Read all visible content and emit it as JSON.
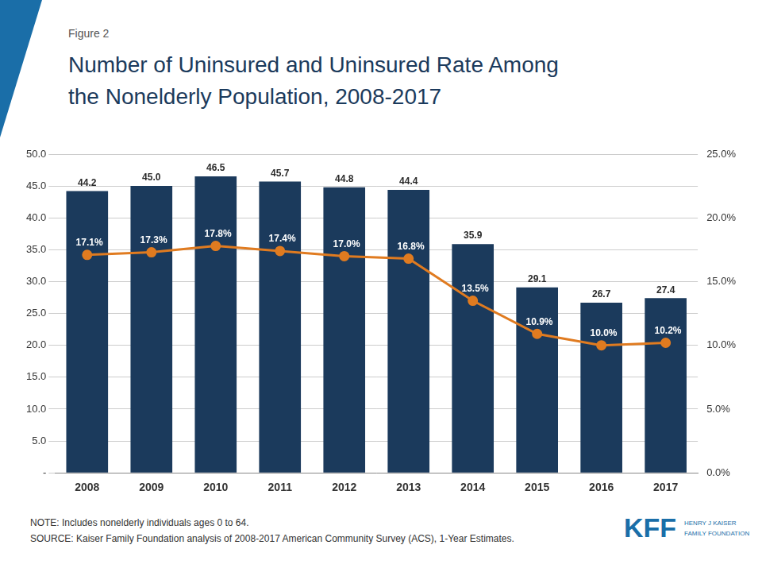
{
  "chart_data": {
    "type": "bar",
    "subtitle": "Figure 2",
    "title": [
      "Number of Uninsured and Uninsured Rate Among",
      "the Nonelderly Population, 2008-2017"
    ],
    "annotations": [
      "NOTE: Includes nonelderly individuals  ages 0 to 64.",
      "SOURCE: Kaiser Family Foundation analysis of 2008-2017 American Community Survey (ACS), 1-Year Estimates.",
      "KFF",
      "HENRY J KAISER\nFAMILY FOUNDATION"
    ],
    "categories": [
      "2008",
      "2009",
      "2010",
      "2011",
      "2012",
      "2013",
      "2014",
      "2015",
      "2016",
      "2017"
    ],
    "series": [
      {
        "type": "bar",
        "color": "#1b3a5c",
        "values": [
          44.2,
          45.0,
          46.5,
          45.7,
          44.8,
          44.4,
          35.9,
          29.1,
          26.7,
          27.4
        ],
        "value_labels": [
          "44.2",
          "45.0",
          "46.5",
          "45.7",
          "44.8",
          "44.4",
          "35.9",
          "29.1",
          "26.7",
          "27.4"
        ],
        "data_labels": true
      },
      {
        "type": "line",
        "axis": "y2",
        "color": "#e07b20",
        "marker": "circle",
        "values": [
          17.1,
          17.3,
          17.8,
          17.4,
          17.0,
          16.8,
          13.5,
          10.9,
          10.0,
          10.2
        ],
        "value_labels": [
          "17.1%",
          "17.3%",
          "17.8%",
          "17.4%",
          "17.0%",
          "16.8%",
          "13.5%",
          "10.9%",
          "10.0%",
          "10.2%"
        ],
        "data_labels": true
      }
    ],
    "ylim": [
      0,
      50
    ],
    "yticks": [
      {
        "value": 0,
        "label": "-"
      },
      {
        "value": 5.0,
        "label": "5.0"
      },
      {
        "value": 10.0,
        "label": "10.0"
      },
      {
        "value": 15.0,
        "label": "15.0"
      },
      {
        "value": 20.0,
        "label": "20.0"
      },
      {
        "value": 25.0,
        "label": "25.0"
      },
      {
        "value": 30.0,
        "label": "30.0"
      },
      {
        "value": 35.0,
        "label": "35.0"
      },
      {
        "value": 40.0,
        "label": "40.0"
      },
      {
        "value": 45.0,
        "label": "45.0"
      },
      {
        "value": 50.0,
        "label": "50.0"
      }
    ],
    "y2lim": [
      0,
      25
    ],
    "y2ticks": [
      {
        "value": 0.0,
        "label": "0.0%"
      },
      {
        "value": 5.0,
        "label": "5.0%"
      },
      {
        "value": 10.0,
        "label": "10.0%"
      },
      {
        "value": 15.0,
        "label": "15.0%"
      },
      {
        "value": 20.0,
        "label": "20.0%"
      },
      {
        "value": 25.0,
        "label": "25.0%"
      }
    ],
    "grid": true
  }
}
